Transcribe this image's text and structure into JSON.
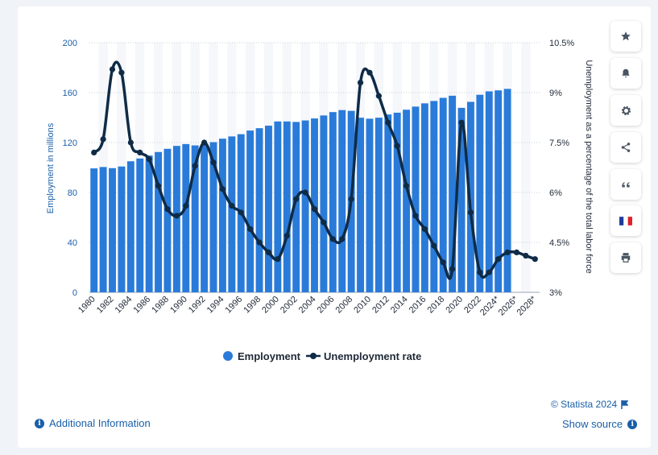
{
  "chart_data": {
    "type": "bar+line",
    "categories": [
      "1980",
      "1981",
      "1982",
      "1983",
      "1984",
      "1985",
      "1986",
      "1987",
      "1988",
      "1989",
      "1990",
      "1991",
      "1992",
      "1993",
      "1994",
      "1995",
      "1996",
      "1997",
      "1998",
      "1999",
      "2000",
      "2001",
      "2002",
      "2003",
      "2004",
      "2005",
      "2006",
      "2007",
      "2008",
      "2009",
      "2010",
      "2011",
      "2012",
      "2013",
      "2014",
      "2015",
      "2016",
      "2017",
      "2018",
      "2019",
      "2020",
      "2021",
      "2022",
      "2023",
      "2024*",
      "2025*",
      "2026*",
      "2027*",
      "2028*"
    ],
    "x_tick_labels": [
      "1980",
      "1982",
      "1984",
      "1986",
      "1988",
      "1990",
      "1992",
      "1994",
      "1996",
      "1998",
      "2000",
      "2002",
      "2004",
      "2006",
      "2008",
      "2010",
      "2012",
      "2014",
      "2016",
      "2018",
      "2020",
      "2022",
      "2024*",
      "2026*",
      "2028*"
    ],
    "series": [
      {
        "name": "Employment",
        "axis": "left",
        "color": "#2a7bd9",
        "values": [
          99.3,
          100.4,
          99.5,
          100.8,
          105.0,
          107.2,
          109.6,
          112.4,
          115.0,
          117.3,
          118.8,
          117.7,
          118.5,
          120.3,
          123.1,
          124.9,
          126.7,
          129.6,
          131.5,
          133.5,
          136.9,
          136.9,
          136.5,
          137.7,
          139.3,
          141.7,
          144.4,
          146.0,
          145.4,
          139.9,
          139.1,
          139.9,
          142.5,
          143.9,
          146.3,
          148.8,
          151.4,
          153.3,
          155.8,
          157.5,
          147.8,
          152.6,
          158.3,
          161.0,
          161.8,
          163.0,
          null,
          null,
          null
        ]
      },
      {
        "name": "Unemployment rate",
        "axis": "right",
        "color": "#0f2b46",
        "values": [
          7.2,
          7.6,
          9.7,
          9.6,
          7.5,
          7.2,
          7.0,
          6.2,
          5.5,
          5.3,
          5.6,
          6.8,
          7.5,
          6.9,
          6.1,
          5.6,
          5.4,
          4.9,
          4.5,
          4.2,
          4.0,
          4.7,
          5.8,
          6.0,
          5.5,
          5.1,
          4.6,
          4.6,
          5.8,
          9.3,
          9.6,
          8.9,
          8.1,
          7.4,
          6.2,
          5.3,
          4.9,
          4.4,
          3.9,
          3.7,
          8.1,
          5.4,
          3.6,
          3.6,
          4.0,
          4.2,
          4.2,
          4.1,
          4.0
        ]
      }
    ],
    "ylabel_left": "Employment in millions",
    "ylabel_right": "Unemployment as a percentage of the total labor force",
    "ylim_left": [
      0,
      200
    ],
    "yticks_left": [
      "0",
      "40",
      "80",
      "120",
      "160",
      "200"
    ],
    "ylim_right": [
      3,
      10.5
    ],
    "yticks_right": [
      "3%",
      "4.5%",
      "6%",
      "7.5%",
      "9%",
      "10.5%"
    ],
    "grid": true,
    "legend": "bottom-center",
    "title": ""
  },
  "legend": {
    "employment_label": "Employment",
    "unemployment_label": "Unemployment rate"
  },
  "footer": {
    "credit": "© Statista 2024",
    "additional_info": "Additional Information",
    "show_source": "Show source"
  },
  "sidebar": {
    "buttons": [
      {
        "icon": "star-icon",
        "label": "favorite"
      },
      {
        "icon": "bell-icon",
        "label": "notifications"
      },
      {
        "icon": "gear-icon",
        "label": "settings"
      },
      {
        "icon": "share-icon",
        "label": "share"
      },
      {
        "icon": "quote-icon",
        "label": "cite"
      },
      {
        "icon": "flag-fr-icon",
        "label": "language"
      },
      {
        "icon": "print-icon",
        "label": "print"
      }
    ]
  },
  "colors": {
    "bar": "#2a7bd9",
    "line": "#0f2b46",
    "accent": "#1a5fa8"
  }
}
